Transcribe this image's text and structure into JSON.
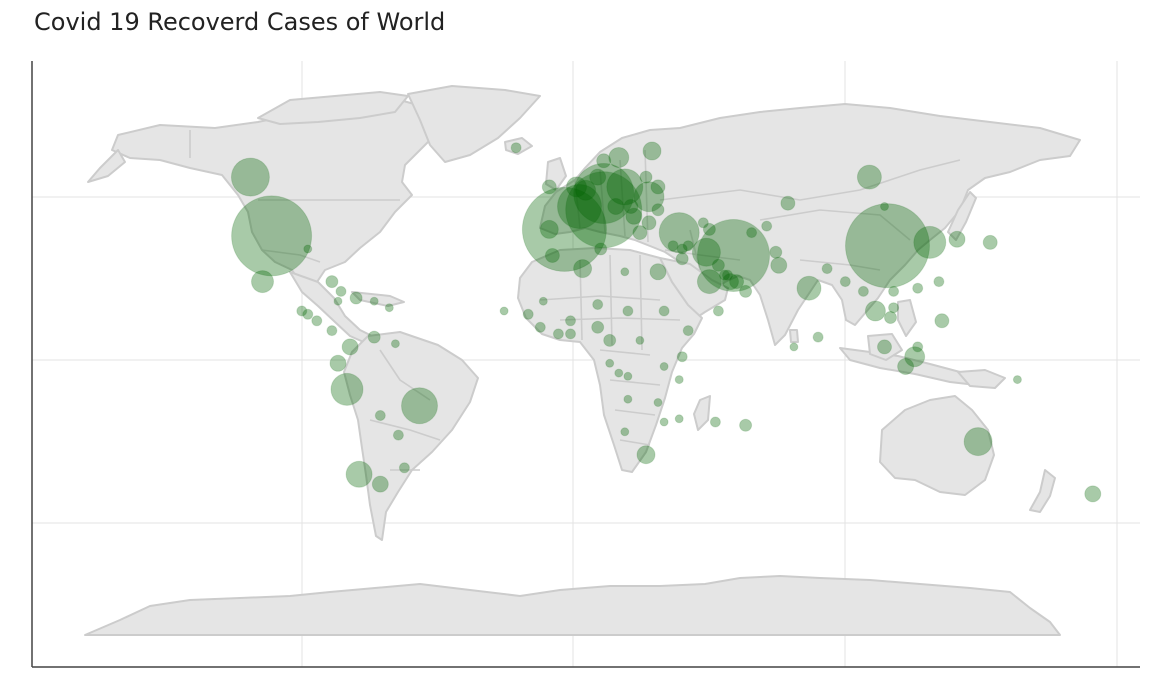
{
  "title": "Covid 19 Recoverd Cases of World",
  "colors": {
    "land": "#e5e5e5",
    "border": "#cccccc",
    "grid": "#e3e3e3",
    "axis": "#444444",
    "bubble": "#006400",
    "bubble_opacity": 0.34
  },
  "chart_data": {
    "type": "scatter_geo",
    "projection": "equirectangular",
    "lon_range": [
      -180,
      180
    ],
    "lat_range": [
      -90,
      90
    ],
    "grid": true,
    "metric": "recovered",
    "points": [
      {
        "lon": -100,
        "lat": 38,
        "size": 40
      },
      {
        "lon": -107,
        "lat": 56,
        "size": 19
      },
      {
        "lon": -103,
        "lat": 24,
        "size": 11
      },
      {
        "lon": -88,
        "lat": 34,
        "size": 4
      },
      {
        "lon": -80,
        "lat": 24,
        "size": 6
      },
      {
        "lon": -77,
        "lat": 21,
        "size": 5
      },
      {
        "lon": -72,
        "lat": 19,
        "size": 6
      },
      {
        "lon": -66,
        "lat": 18,
        "size": 4
      },
      {
        "lon": -61,
        "lat": 16,
        "size": 4
      },
      {
        "lon": -78,
        "lat": 18,
        "size": 4
      },
      {
        "lon": -90,
        "lat": 15,
        "size": 5
      },
      {
        "lon": -88,
        "lat": 14,
        "size": 5
      },
      {
        "lon": -85,
        "lat": 12,
        "size": 5
      },
      {
        "lon": -80,
        "lat": 9,
        "size": 5
      },
      {
        "lon": -74,
        "lat": 4,
        "size": 8
      },
      {
        "lon": -66,
        "lat": 7,
        "size": 6
      },
      {
        "lon": -59,
        "lat": 5,
        "size": 4
      },
      {
        "lon": -78,
        "lat": -1,
        "size": 8
      },
      {
        "lon": -75,
        "lat": -9,
        "size": 16
      },
      {
        "lon": -51,
        "lat": -14,
        "size": 18
      },
      {
        "lon": -64,
        "lat": -17,
        "size": 5
      },
      {
        "lon": -58,
        "lat": -23,
        "size": 5
      },
      {
        "lon": -71,
        "lat": -35,
        "size": 13
      },
      {
        "lon": -64,
        "lat": -38,
        "size": 8
      },
      {
        "lon": -56,
        "lat": -33,
        "size": 5
      },
      {
        "lon": -3,
        "lat": 40,
        "size": 42
      },
      {
        "lon": 10,
        "lat": 46,
        "size": 38
      },
      {
        "lon": 10,
        "lat": 51,
        "size": 30
      },
      {
        "lon": 2,
        "lat": 47,
        "size": 22
      },
      {
        "lon": 17,
        "lat": 53,
        "size": 18
      },
      {
        "lon": 25,
        "lat": 50,
        "size": 15
      },
      {
        "lon": 35,
        "lat": 39,
        "size": 20
      },
      {
        "lon": 44,
        "lat": 33,
        "size": 14
      },
      {
        "lon": 53,
        "lat": 32,
        "size": 36
      },
      {
        "lon": 98,
        "lat": 56,
        "size": 12
      },
      {
        "lon": 104,
        "lat": 35,
        "size": 42
      },
      {
        "lon": 118,
        "lat": 36,
        "size": 16
      },
      {
        "lon": 127,
        "lat": 37,
        "size": 8
      },
      {
        "lon": 78,
        "lat": 22,
        "size": 12
      },
      {
        "lon": 68,
        "lat": 29,
        "size": 8
      },
      {
        "lon": 100,
        "lat": 15,
        "size": 10
      },
      {
        "lon": 103,
        "lat": 4,
        "size": 7
      },
      {
        "lon": 113,
        "lat": 1,
        "size": 10
      },
      {
        "lon": 110,
        "lat": -2,
        "size": 8
      },
      {
        "lon": 122,
        "lat": 12,
        "size": 7
      },
      {
        "lon": 134,
        "lat": -25,
        "size": 14
      },
      {
        "lon": 172,
        "lat": -41,
        "size": 8
      },
      {
        "lon": 24,
        "lat": -29,
        "size": 9
      },
      {
        "lon": 3,
        "lat": 28,
        "size": 9
      },
      {
        "lon": 28,
        "lat": 27,
        "size": 8
      },
      {
        "lon": 45,
        "lat": 24,
        "size": 12
      },
      {
        "lon": 52,
        "lat": 24,
        "size": 8
      },
      {
        "lon": 57,
        "lat": 21,
        "size": 6
      },
      {
        "lon": 48,
        "lat": 15,
        "size": 5
      },
      {
        "lon": 38,
        "lat": 9,
        "size": 5
      },
      {
        "lon": 36,
        "lat": 1,
        "size": 5
      },
      {
        "lon": 30,
        "lat": -2,
        "size": 4
      },
      {
        "lon": 35,
        "lat": -6,
        "size": 4
      },
      {
        "lon": 28,
        "lat": -13,
        "size": 4
      },
      {
        "lon": 30,
        "lat": -19,
        "size": 4
      },
      {
        "lon": 35,
        "lat": -18,
        "size": 4
      },
      {
        "lon": 47,
        "lat": -19,
        "size": 5
      },
      {
        "lon": 57,
        "lat": -20,
        "size": 6
      },
      {
        "lon": 17,
        "lat": -22,
        "size": 4
      },
      {
        "lon": 8,
        "lat": 17,
        "size": 5
      },
      {
        "lon": 8,
        "lat": 10,
        "size": 6
      },
      {
        "lon": -1,
        "lat": 12,
        "size": 5
      },
      {
        "lon": -5,
        "lat": 8,
        "size": 5
      },
      {
        "lon": -11,
        "lat": 10,
        "size": 5
      },
      {
        "lon": -15,
        "lat": 14,
        "size": 5
      },
      {
        "lon": -10,
        "lat": 18,
        "size": 4
      },
      {
        "lon": -23,
        "lat": 15,
        "size": 4
      },
      {
        "lon": -1,
        "lat": 8,
        "size": 5
      },
      {
        "lon": 12,
        "lat": 6,
        "size": 6
      },
      {
        "lon": 18,
        "lat": 15,
        "size": 5
      },
      {
        "lon": 22,
        "lat": 6,
        "size": 4
      },
      {
        "lon": 30,
        "lat": 15,
        "size": 5
      },
      {
        "lon": 12,
        "lat": -1,
        "size": 4
      },
      {
        "lon": 18,
        "lat": -5,
        "size": 4
      },
      {
        "lon": 15,
        "lat": -4,
        "size": 4
      },
      {
        "lon": 18,
        "lat": -12,
        "size": 4
      },
      {
        "lon": 9,
        "lat": 34,
        "size": 6
      },
      {
        "lon": -7,
        "lat": 32,
        "size": 7
      },
      {
        "lon": 17,
        "lat": 27,
        "size": 4
      },
      {
        "lon": -19,
        "lat": 65,
        "size": 5
      },
      {
        "lon": 71,
        "lat": 48,
        "size": 7
      },
      {
        "lon": 64,
        "lat": 41,
        "size": 5
      },
      {
        "lon": 59,
        "lat": 39,
        "size": 5
      },
      {
        "lon": 67,
        "lat": 33,
        "size": 6
      },
      {
        "lon": 90,
        "lat": 24,
        "size": 5
      },
      {
        "lon": 84,
        "lat": 28,
        "size": 5
      },
      {
        "lon": 81,
        "lat": 7,
        "size": 5
      },
      {
        "lon": 73,
        "lat": 4,
        "size": 4
      },
      {
        "lon": 96,
        "lat": 21,
        "size": 5
      },
      {
        "lon": 105,
        "lat": 13,
        "size": 6
      },
      {
        "lon": 106,
        "lat": 16,
        "size": 5
      },
      {
        "lon": 106,
        "lat": 21,
        "size": 5
      },
      {
        "lon": 114,
        "lat": 4,
        "size": 5
      },
      {
        "lon": 103,
        "lat": 47,
        "size": 4
      },
      {
        "lon": 138,
        "lat": 36,
        "size": 7
      },
      {
        "lon": 147,
        "lat": -6,
        "size": 4
      },
      {
        "lon": 121,
        "lat": 24,
        "size": 5
      },
      {
        "lon": 114,
        "lat": 22,
        "size": 5
      },
      {
        "lon": 20,
        "lat": 44,
        "size": 8
      },
      {
        "lon": 25,
        "lat": 42,
        "size": 7
      },
      {
        "lon": 28,
        "lat": 46,
        "size": 6
      },
      {
        "lon": 19,
        "lat": 47,
        "size": 7
      },
      {
        "lon": 4,
        "lat": 52,
        "size": 10
      },
      {
        "lon": 1,
        "lat": 53,
        "size": 10
      },
      {
        "lon": 8,
        "lat": 56,
        "size": 8
      },
      {
        "lon": 15,
        "lat": 62,
        "size": 10
      },
      {
        "lon": 26,
        "lat": 64,
        "size": 9
      },
      {
        "lon": 10,
        "lat": 61,
        "size": 7
      },
      {
        "lon": 28,
        "lat": 53,
        "size": 7
      },
      {
        "lon": 24,
        "lat": 56,
        "size": 6
      },
      {
        "lon": -8,
        "lat": 53,
        "size": 7
      },
      {
        "lon": -8,
        "lat": 40,
        "size": 9
      },
      {
        "lon": 14,
        "lat": 47,
        "size": 8
      },
      {
        "lon": 22,
        "lat": 39,
        "size": 7
      },
      {
        "lon": 33,
        "lat": 35,
        "size": 5
      },
      {
        "lon": 45,
        "lat": 40,
        "size": 6
      },
      {
        "lon": 43,
        "lat": 42,
        "size": 5
      },
      {
        "lon": 36,
        "lat": 31,
        "size": 6
      },
      {
        "lon": 36,
        "lat": 34,
        "size": 5
      },
      {
        "lon": 38,
        "lat": 35,
        "size": 5
      },
      {
        "lon": 48,
        "lat": 29,
        "size": 6
      },
      {
        "lon": 51,
        "lat": 26,
        "size": 5
      },
      {
        "lon": 50,
        "lat": 26,
        "size": 5
      },
      {
        "lon": 54,
        "lat": 24,
        "size": 7
      }
    ]
  }
}
